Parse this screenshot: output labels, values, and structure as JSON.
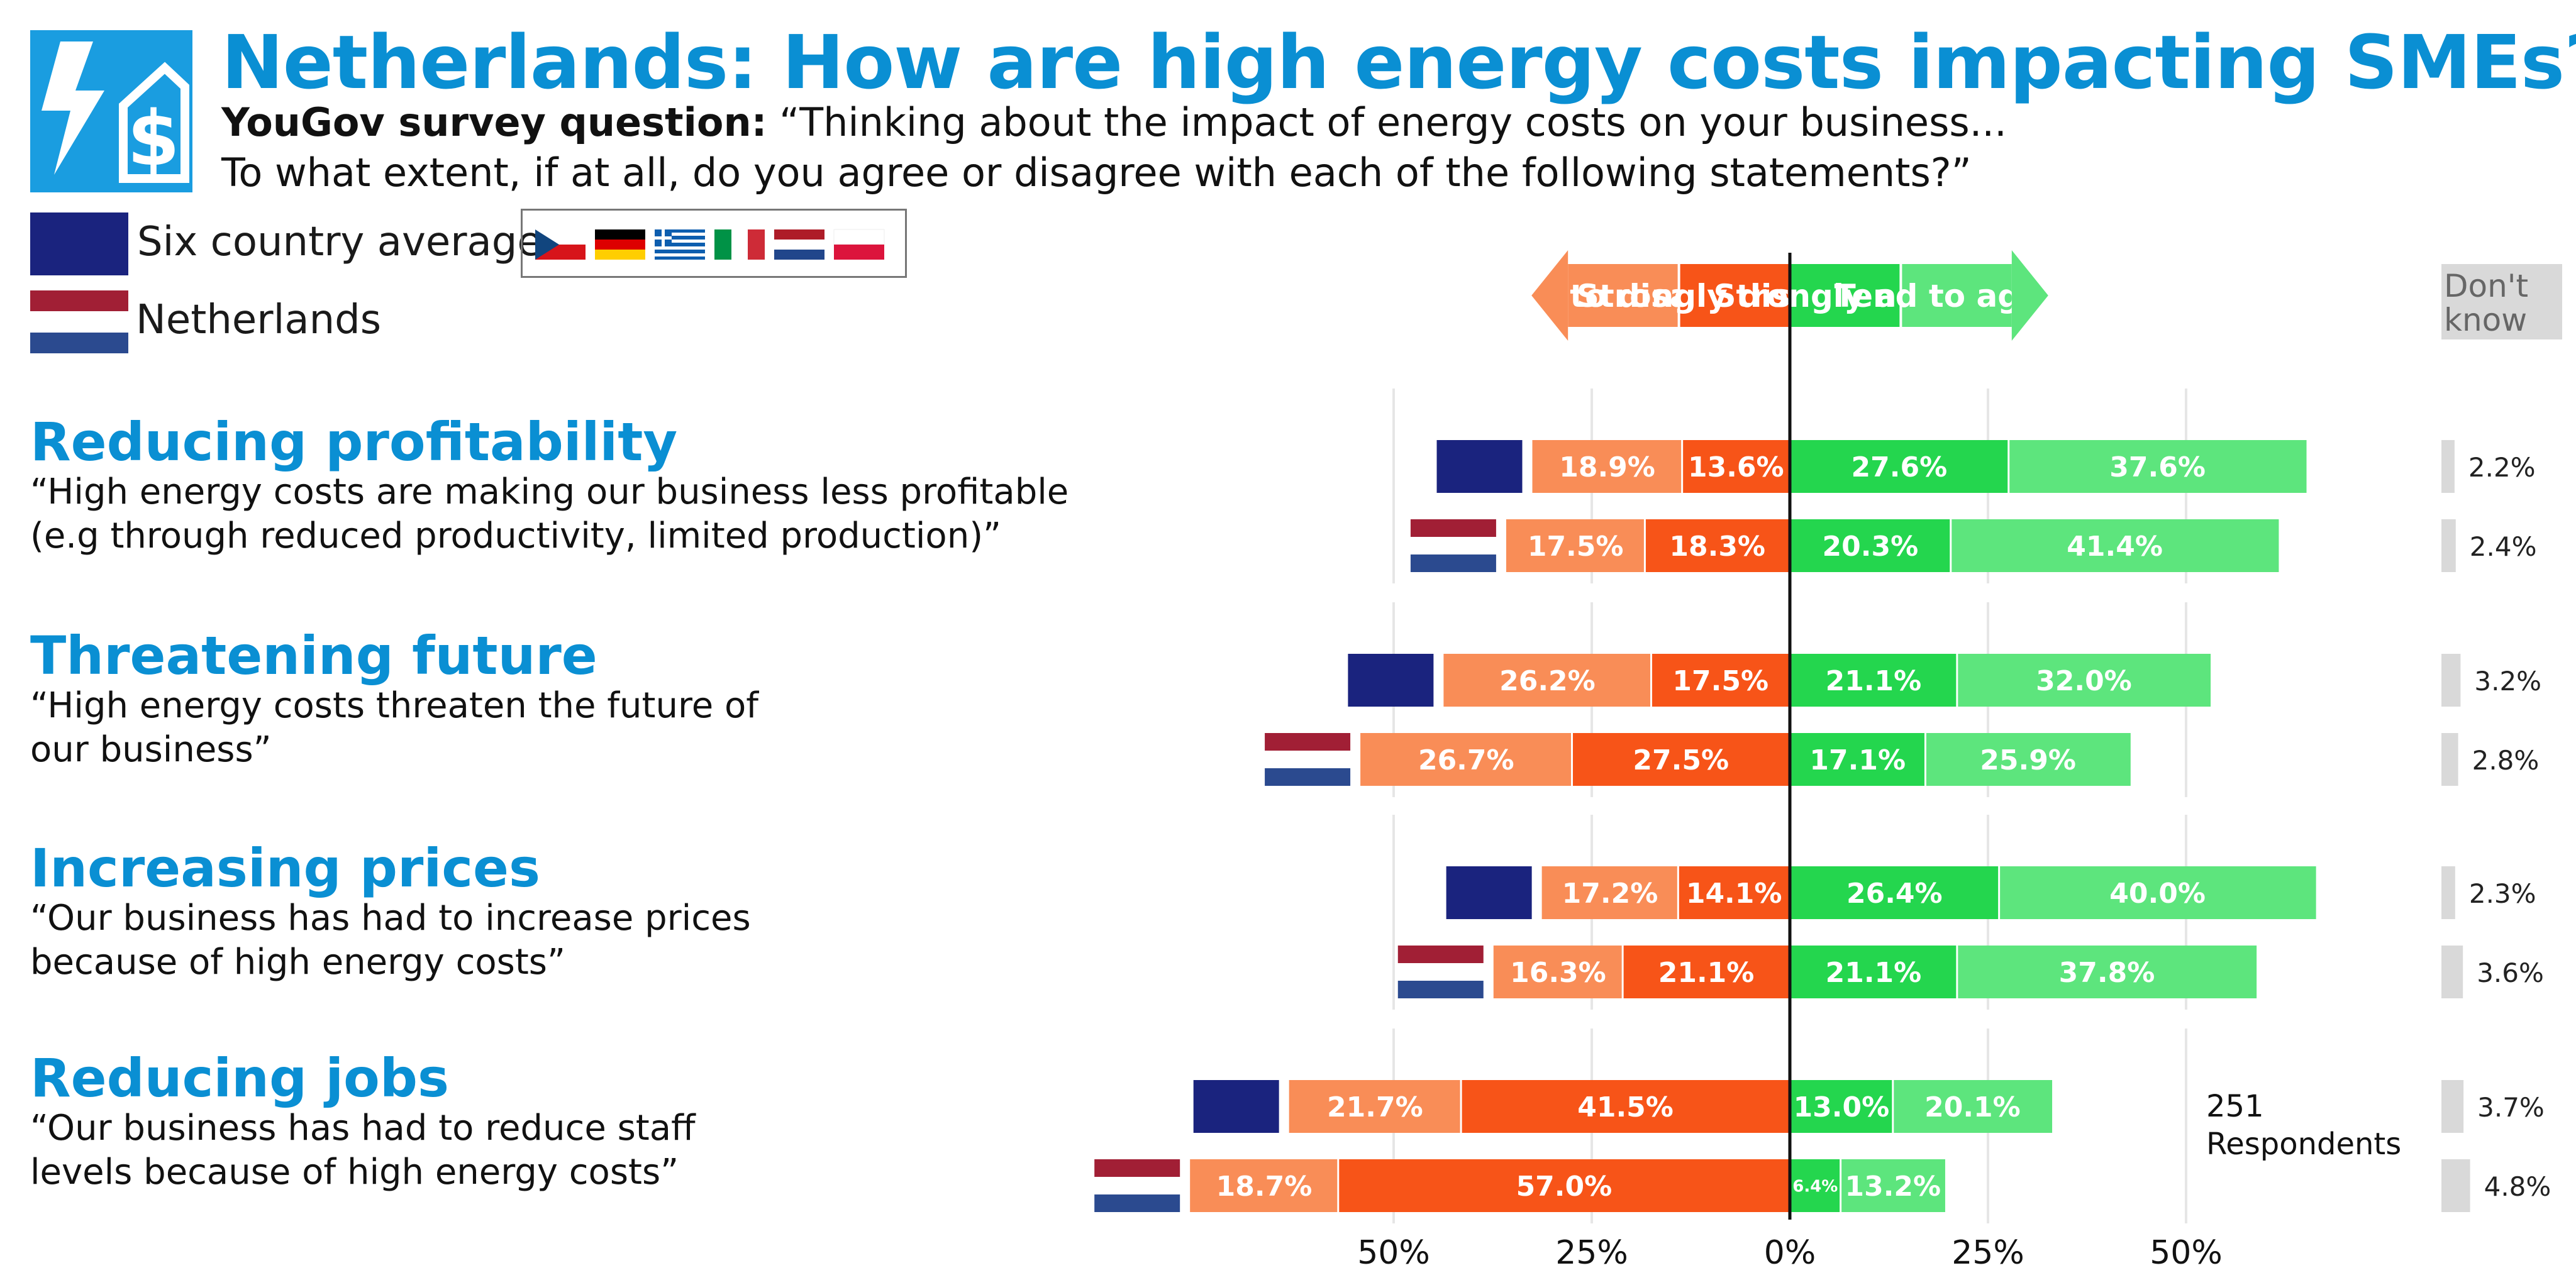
{
  "header": {
    "title": "Netherlands: How are high energy costs impacting SMEs?",
    "subtitle_label": "YouGov survey question:",
    "subtitle_line1": "“Thinking about the impact of energy costs on your business...",
    "subtitle_line2": "To what extent, if at all, do you agree or disagree with each of the following statements?”"
  },
  "legend": {
    "avg_label": "Six country average",
    "country_label": "Netherlands",
    "avg_color": "#1a237e",
    "country_flags": [
      "Czech Republic",
      "Germany",
      "Greece",
      "Italy",
      "Netherlands",
      "Poland"
    ]
  },
  "scale_header": {
    "tend_disagree": "Tend to disagree",
    "strongly_disagree": "Strongly disagree",
    "strongly_agree": "Strongly agree",
    "tend_agree": "Tend to agree",
    "dont_know": "Don't know"
  },
  "colors": {
    "tend_disagree": "#f98d57",
    "strongly_disagree": "#f75418",
    "strongly_agree": "#24d64e",
    "tend_agree": "#5de57d",
    "dont_know": "#d9d9d9",
    "accent": "#0a8fd3"
  },
  "questions": [
    {
      "title": "Reducing profitability",
      "text_line1": "“High energy costs are making our business less profitable",
      "text_line2": "(e.g through reduced productivity, limited production)”"
    },
    {
      "title": "Threatening future",
      "text_line1": "“High energy costs threaten the future of",
      "text_line2": "our business”"
    },
    {
      "title": "Increasing prices",
      "text_line1": "“Our business has had to increase prices",
      "text_line2": "because of high energy costs”"
    },
    {
      "title": "Reducing jobs",
      "text_line1": "“Our business has had to reduce staff",
      "text_line2": "levels because of high energy costs”"
    }
  ],
  "respondents": {
    "count": "251",
    "label": "Respondents"
  },
  "chart_data": {
    "type": "bar",
    "orientation": "diverging-horizontal",
    "x_ticks": [
      "50%",
      "25%",
      "0%",
      "25%",
      "50%"
    ],
    "xlim": [
      -50,
      50
    ],
    "rows": [
      {
        "question": "Reducing profitability",
        "group": "Six country average",
        "tend_disagree": 18.9,
        "strongly_disagree": 13.6,
        "strongly_agree": 27.6,
        "tend_agree": 37.6,
        "dont_know": 2.2,
        "labels": {
          "tend_disagree": "18.9%",
          "strongly_disagree": "13.6%",
          "strongly_agree": "27.6%",
          "tend_agree": "37.6%",
          "dont_know": "2.2%"
        }
      },
      {
        "question": "Reducing profitability",
        "group": "Netherlands",
        "tend_disagree": 17.5,
        "strongly_disagree": 18.3,
        "strongly_agree": 20.3,
        "tend_agree": 41.4,
        "dont_know": 2.4,
        "labels": {
          "tend_disagree": "17.5%",
          "strongly_disagree": "18.3%",
          "strongly_agree": "20.3%",
          "tend_agree": "41.4%",
          "dont_know": "2.4%"
        }
      },
      {
        "question": "Threatening future",
        "group": "Six country average",
        "tend_disagree": 26.2,
        "strongly_disagree": 17.5,
        "strongly_agree": 21.1,
        "tend_agree": 32.0,
        "dont_know": 3.2,
        "labels": {
          "tend_disagree": "26.2%",
          "strongly_disagree": "17.5%",
          "strongly_agree": "21.1%",
          "tend_agree": "32.0%",
          "dont_know": "3.2%"
        }
      },
      {
        "question": "Threatening future",
        "group": "Netherlands",
        "tend_disagree": 26.7,
        "strongly_disagree": 27.5,
        "strongly_agree": 17.1,
        "tend_agree": 25.9,
        "dont_know": 2.8,
        "labels": {
          "tend_disagree": "26.7%",
          "strongly_disagree": "27.5%",
          "strongly_agree": "17.1%",
          "tend_agree": "25.9%",
          "dont_know": "2.8%"
        }
      },
      {
        "question": "Increasing prices",
        "group": "Six country average",
        "tend_disagree": 17.2,
        "strongly_disagree": 14.1,
        "strongly_agree": 26.4,
        "tend_agree": 40.0,
        "dont_know": 2.3,
        "labels": {
          "tend_disagree": "17.2%",
          "strongly_disagree": "14.1%",
          "strongly_agree": "26.4%",
          "tend_agree": "40.0%",
          "dont_know": "2.3%"
        }
      },
      {
        "question": "Increasing prices",
        "group": "Netherlands",
        "tend_disagree": 16.3,
        "strongly_disagree": 21.1,
        "strongly_agree": 21.1,
        "tend_agree": 37.8,
        "dont_know": 3.6,
        "labels": {
          "tend_disagree": "16.3%",
          "strongly_disagree": "21.1%",
          "strongly_agree": "21.1%",
          "tend_agree": "37.8%",
          "dont_know": "3.6%"
        }
      },
      {
        "question": "Reducing jobs",
        "group": "Six country average",
        "tend_disagree": 21.7,
        "strongly_disagree": 41.5,
        "strongly_agree": 13.0,
        "tend_agree": 20.1,
        "dont_know": 3.7,
        "labels": {
          "tend_disagree": "21.7%",
          "strongly_disagree": "41.5%",
          "strongly_agree": "13.0%",
          "tend_agree": "20.1%",
          "dont_know": "3.7%"
        }
      },
      {
        "question": "Reducing jobs",
        "group": "Netherlands",
        "tend_disagree": 18.7,
        "strongly_disagree": 57.0,
        "strongly_agree": 6.4,
        "tend_agree": 13.2,
        "dont_know": 4.8,
        "labels": {
          "tend_disagree": "18.7%",
          "strongly_disagree": "57.0%",
          "strongly_agree": "6.4%",
          "tend_agree": "13.2%",
          "dont_know": "4.8%"
        }
      }
    ]
  }
}
